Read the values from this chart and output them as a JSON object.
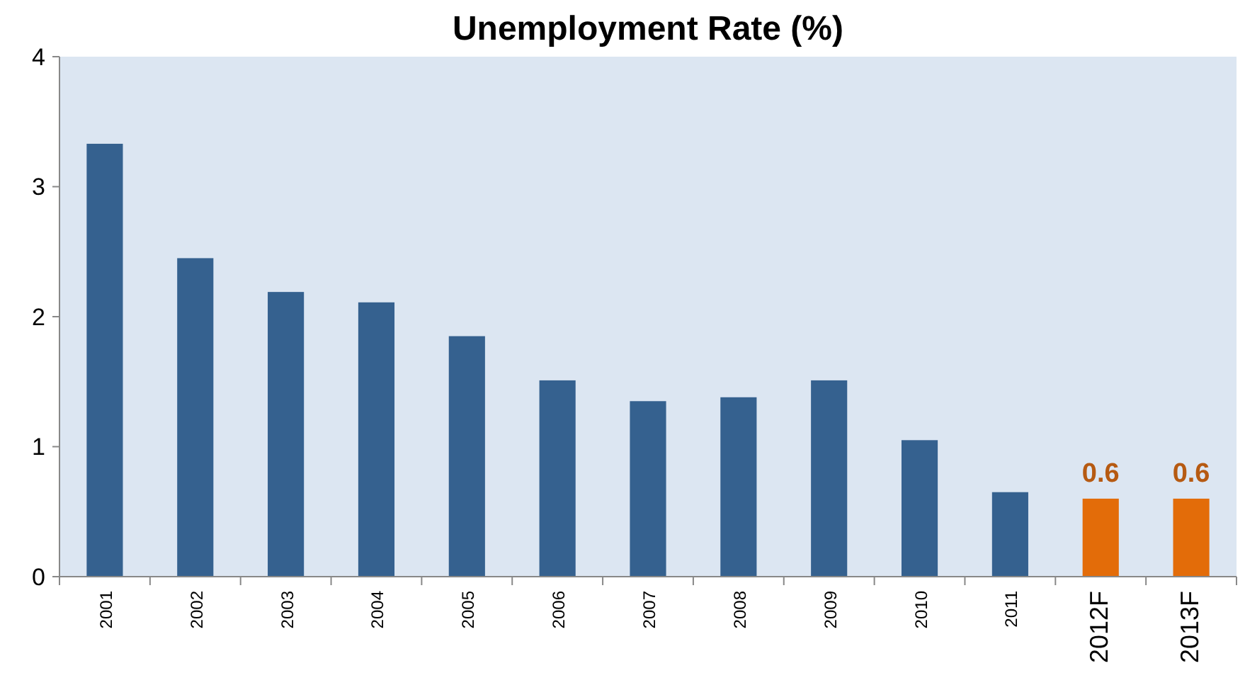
{
  "chart_data": {
    "type": "bar",
    "title": "Unemployment Rate (%)",
    "categories": [
      "2001",
      "2002",
      "2003",
      "2004",
      "2005",
      "2006",
      "2007",
      "2008",
      "2009",
      "2010",
      "2011",
      "2012F",
      "2013F"
    ],
    "values": [
      3.33,
      2.45,
      2.19,
      2.11,
      1.85,
      1.51,
      1.35,
      1.38,
      1.51,
      1.05,
      0.65,
      0.6,
      0.6
    ],
    "colors": [
      "#35618f",
      "#35618f",
      "#35618f",
      "#35618f",
      "#35618f",
      "#35618f",
      "#35618f",
      "#35618f",
      "#35618f",
      "#35618f",
      "#35618f",
      "#e36c09",
      "#e36c09"
    ],
    "value_labels": [
      null,
      null,
      null,
      null,
      null,
      null,
      null,
      null,
      null,
      null,
      null,
      "0.6",
      "0.6"
    ],
    "ylim": [
      0,
      4
    ],
    "yticks": [
      0,
      1,
      2,
      3,
      4
    ]
  }
}
